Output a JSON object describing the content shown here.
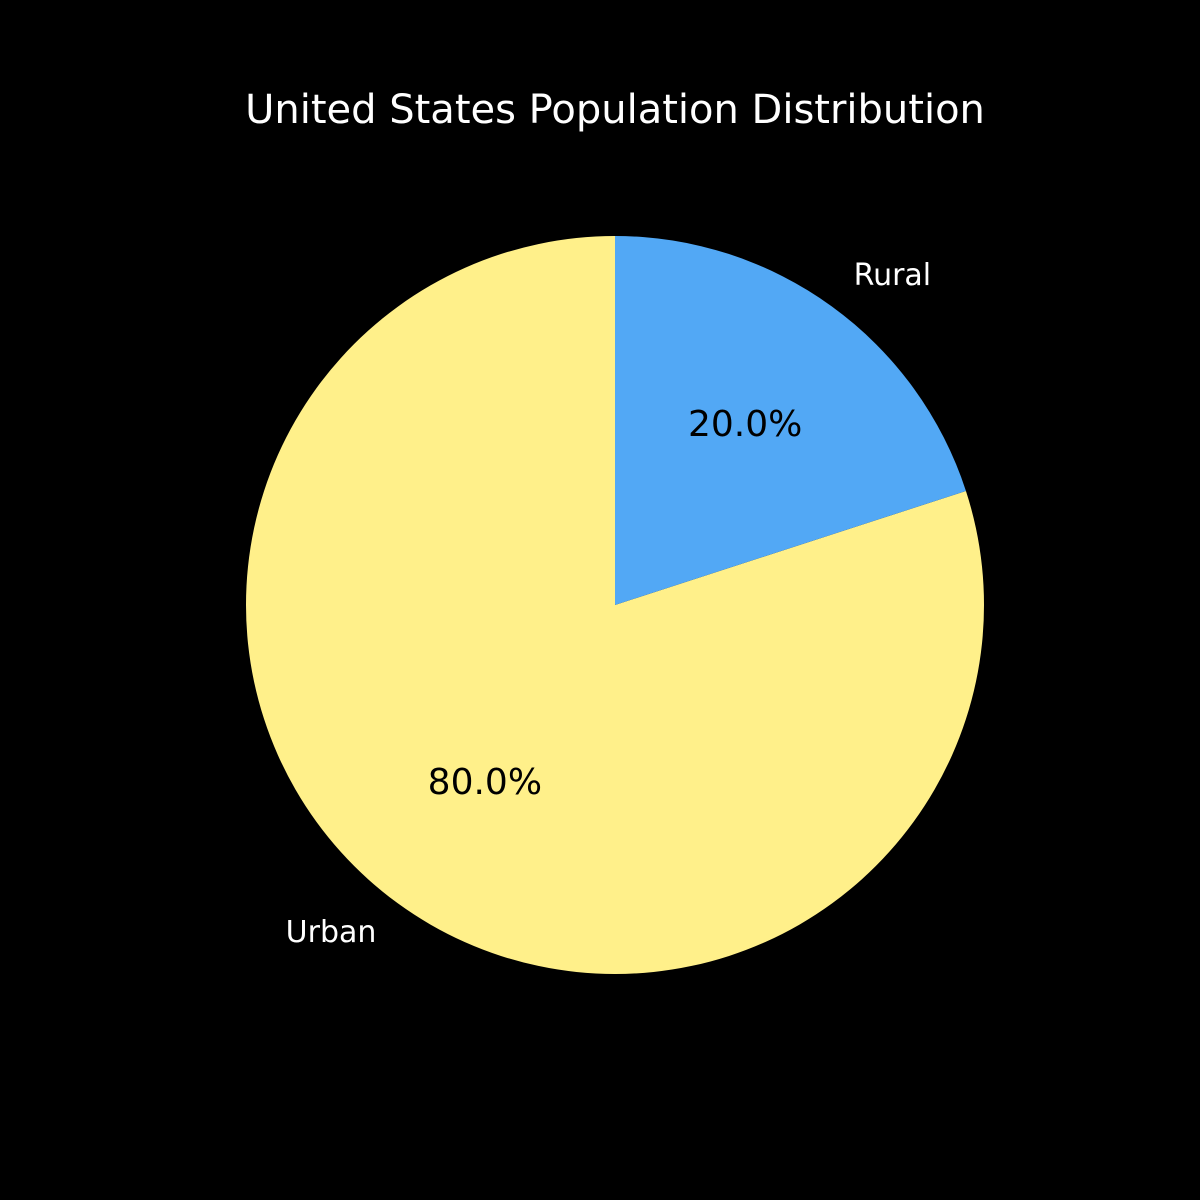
{
  "chart_data": {
    "type": "pie",
    "title": "United States Population Distribution",
    "categories": [
      "Urban",
      "Rural"
    ],
    "values": [
      80,
      20
    ],
    "value_labels": [
      "80.0%",
      "20.0%"
    ],
    "colors": [
      "#fff08a",
      "#52a8f5"
    ]
  }
}
